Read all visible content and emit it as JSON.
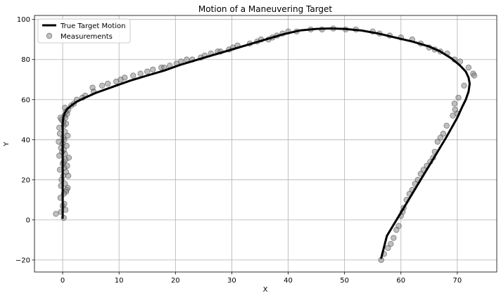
{
  "chart_data": {
    "type": "line",
    "title": "Motion of a Maneuvering Target",
    "xlabel": "X",
    "ylabel": "Y",
    "xlim": [
      -5,
      77
    ],
    "ylim": [
      -26,
      102
    ],
    "xticks": [
      0,
      10,
      20,
      30,
      40,
      50,
      60,
      70
    ],
    "yticks": [
      -20,
      0,
      20,
      40,
      60,
      80,
      100
    ],
    "grid": true,
    "legend_position": "top-left",
    "series": [
      {
        "name": "True Target Motion",
        "kind": "line",
        "color": "#000000",
        "x": [
          0,
          0,
          0,
          0,
          0,
          0,
          0,
          0,
          0,
          0,
          0,
          0.1,
          0.3,
          0.7,
          1.5,
          2.5,
          4,
          6,
          9,
          12,
          15,
          18,
          21,
          24,
          27,
          30,
          33,
          36,
          39,
          42,
          45,
          47.5,
          50,
          53,
          56,
          59,
          62,
          65,
          67,
          69,
          70.5,
          71.5,
          72,
          72.2,
          72,
          71.5,
          70.8,
          70,
          69,
          68,
          66.5,
          65,
          63.5,
          62,
          60.5,
          59,
          57.5,
          56.5
        ],
        "y": [
          1,
          5,
          10,
          15,
          20,
          25,
          30,
          35,
          40,
          45,
          48,
          51,
          53,
          55,
          57,
          59,
          61,
          63.5,
          66.5,
          69.5,
          72,
          74.5,
          77.5,
          80,
          82.5,
          85,
          87.5,
          90,
          92.5,
          94.5,
          95.3,
          95.5,
          95.3,
          94.5,
          93,
          91,
          89,
          86.5,
          84,
          80.5,
          77,
          74,
          71,
          68,
          64,
          60,
          56,
          51,
          46,
          41,
          34,
          27,
          20,
          13,
          6,
          -1,
          -8,
          -19
        ]
      },
      {
        "name": "Measurements",
        "kind": "scatter",
        "color": "#808080",
        "x": [
          -1.2,
          0.2,
          -0.3,
          0.5,
          0.0,
          0.3,
          -0.4,
          0.6,
          0.2,
          0.9,
          -0.3,
          0.4,
          0.7,
          -0.2,
          0.1,
          1.0,
          0.6,
          0.3,
          -0.5,
          0.8,
          0.0,
          0.2,
          0.5,
          1.1,
          -0.6,
          0.4,
          -0.1,
          0.2,
          -0.3,
          0.7,
          0.0,
          -0.7,
          0.3,
          0.9,
          0.1,
          -0.5,
          0.4,
          -0.6,
          0.2,
          0.6,
          0.1,
          -0.2,
          0.5,
          0.3,
          -0.4,
          0.8,
          0.6,
          1.0,
          0.4,
          1.5,
          2.0,
          2.5,
          3.5,
          4.0,
          5.5,
          5.3,
          7.0,
          8.0,
          9.5,
          10.3,
          11.0,
          12.5,
          13.8,
          15.0,
          16.0,
          17.5,
          18.0,
          19.0,
          20.2,
          21.0,
          22.0,
          23.0,
          24.5,
          25.2,
          26.3,
          27.5,
          28.0,
          29.5,
          30.2,
          31.0,
          33.2,
          34.5,
          35.2,
          36.5,
          37.2,
          38.0,
          39.0,
          40.0,
          41.5,
          44.0,
          46.0,
          48.0,
          50.2,
          52.0,
          55.0,
          56.2,
          58.0,
          60.0,
          62.0,
          63.5,
          65.0,
          66.0,
          67.0,
          68.2,
          69.5,
          70.5,
          72.0,
          72.8,
          73.0,
          71.2,
          70.2,
          69.5,
          69.6,
          70.0,
          69.2,
          68.1,
          67.5,
          67.0,
          66.5,
          66.0,
          65.7,
          65.2,
          64.6,
          64.0,
          63.5,
          63.0,
          62.5,
          62.0,
          61.5,
          61.0,
          60.5,
          60.3,
          60.0,
          59.6,
          59.2,
          58.7,
          58.2,
          57.7,
          57.0,
          56.5
        ],
        "y": [
          3,
          1,
          4,
          5,
          7,
          8,
          11,
          14,
          13,
          16,
          17,
          18,
          15,
          20,
          22,
          22,
          24,
          26,
          25,
          27,
          28,
          29,
          30,
          31,
          32,
          33,
          34,
          35,
          36,
          37,
          38,
          39,
          40,
          42,
          41,
          43,
          44,
          46,
          47,
          48,
          49,
          50,
          51,
          52,
          51,
          53,
          54,
          55,
          56,
          57,
          58,
          60,
          61,
          62,
          64,
          66,
          67,
          68,
          69,
          70,
          71,
          72,
          73,
          74,
          75,
          76,
          76,
          77,
          78,
          79,
          80,
          80,
          81,
          82,
          83,
          84,
          84,
          85,
          86,
          87,
          88,
          89,
          90,
          90,
          91,
          92,
          93,
          94,
          94,
          95,
          95,
          95.5,
          95,
          95,
          94,
          93,
          92,
          91,
          90,
          88,
          86,
          85,
          84,
          83,
          80,
          79,
          76,
          73,
          72,
          67,
          61,
          58,
          55,
          53,
          52,
          47,
          43,
          41,
          39,
          34,
          31,
          29,
          27,
          25,
          23,
          20,
          18,
          15,
          13,
          10,
          6,
          4,
          2,
          -3,
          -5,
          -9,
          -12,
          -14,
          -17,
          -20
        ]
      }
    ]
  }
}
